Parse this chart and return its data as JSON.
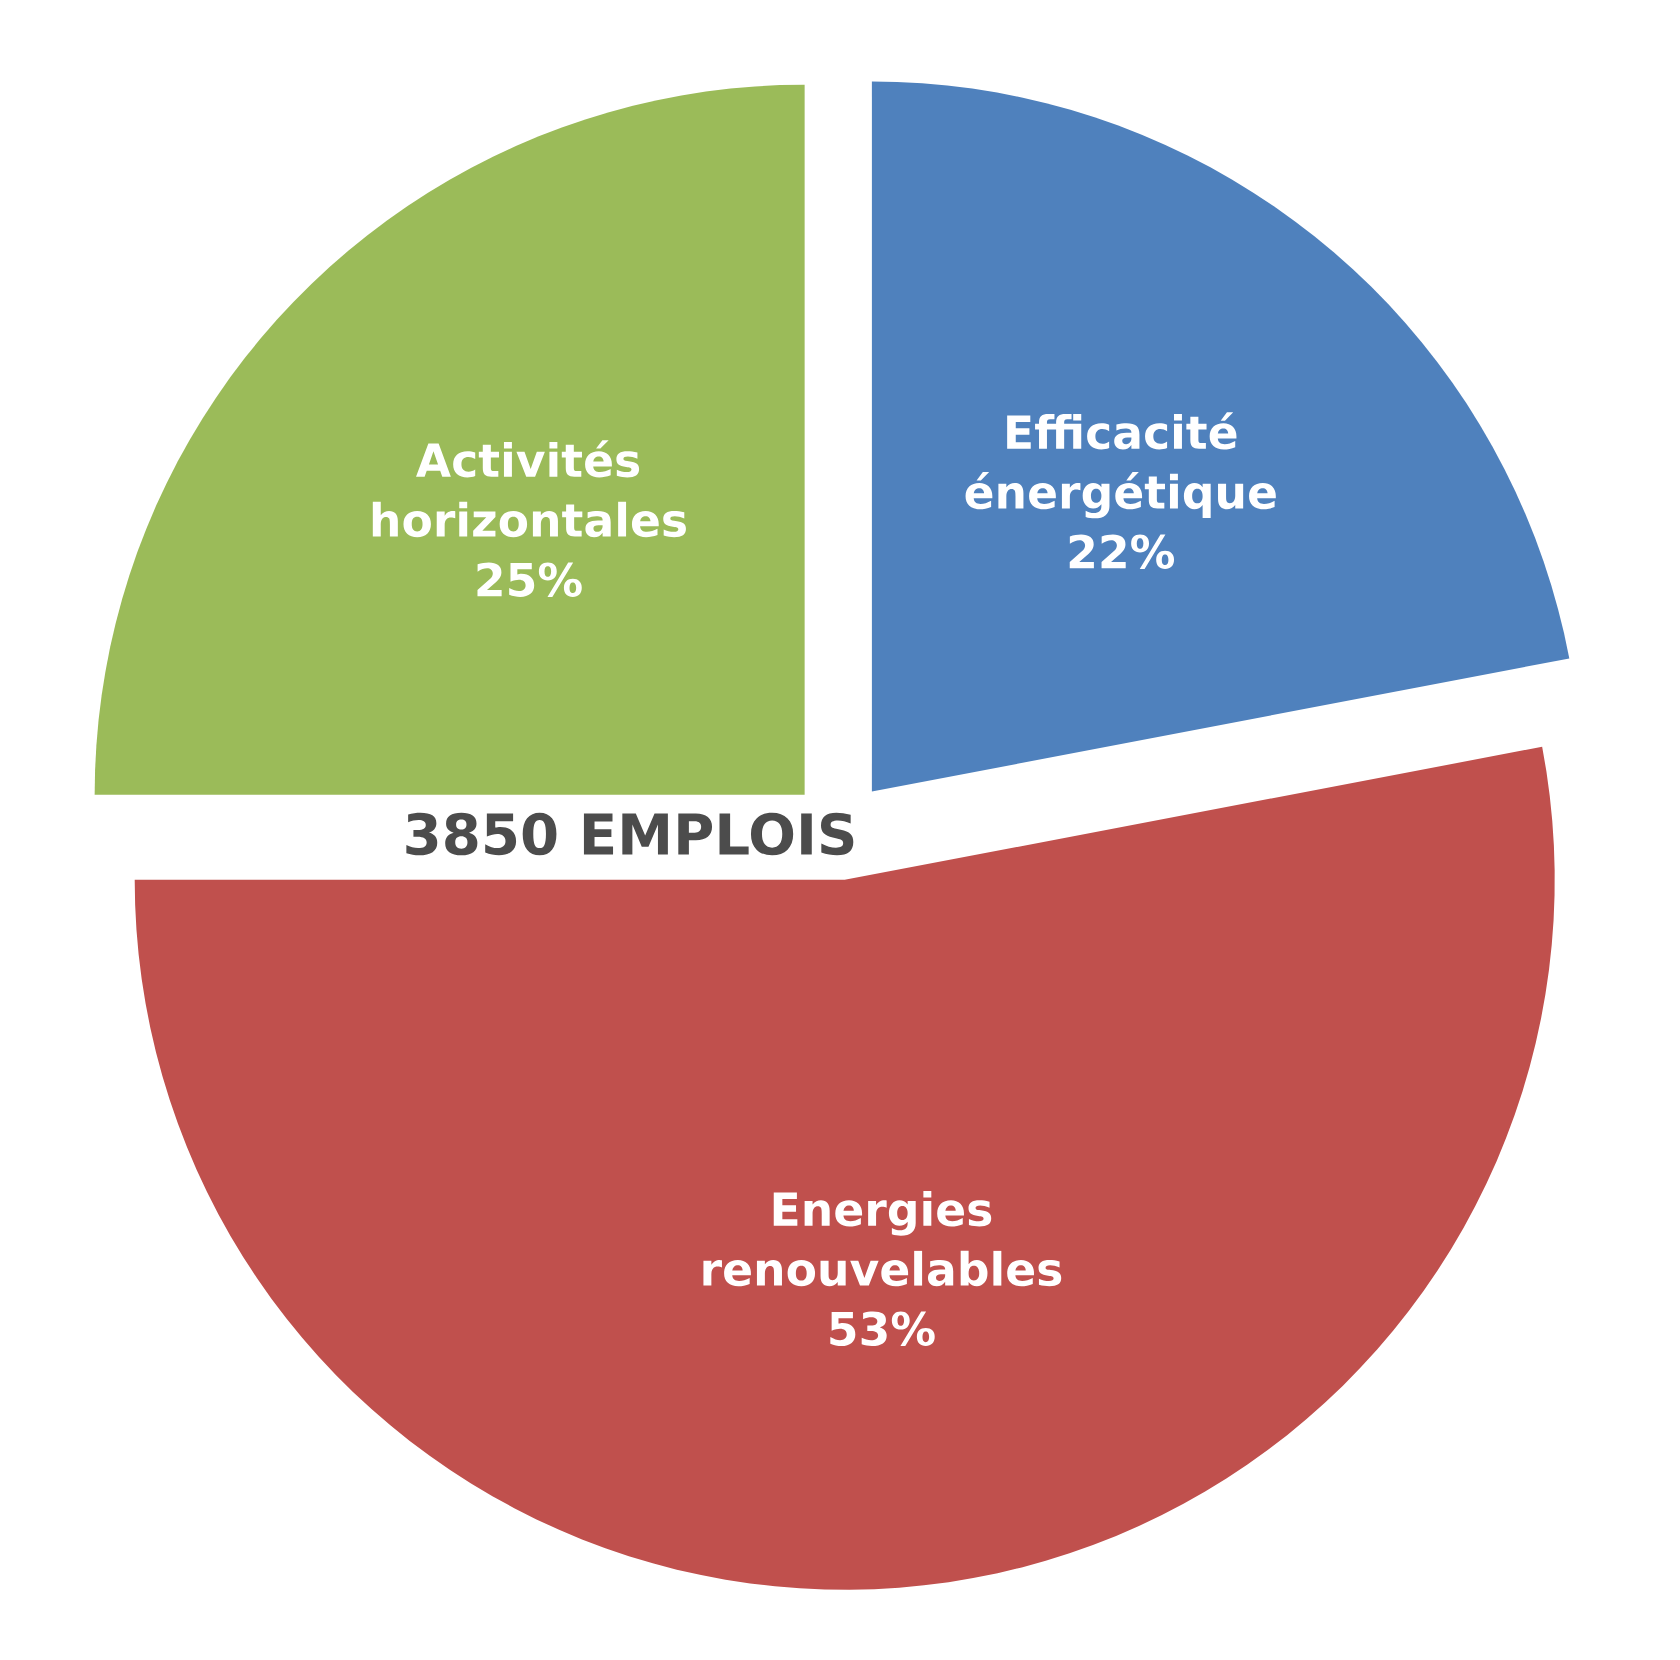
{
  "chart_data": {
    "type": "pie",
    "title": "3850 EMPLOIS",
    "categories": [
      "Efficacité énergétique",
      "Energies renouvelables",
      "Activités horizontales"
    ],
    "values": [
      22,
      53,
      25
    ],
    "value_labels": [
      "22%",
      "53%",
      "25%"
    ],
    "colors": [
      "#4f81bd",
      "#c0504d",
      "#9bbb59"
    ]
  }
}
